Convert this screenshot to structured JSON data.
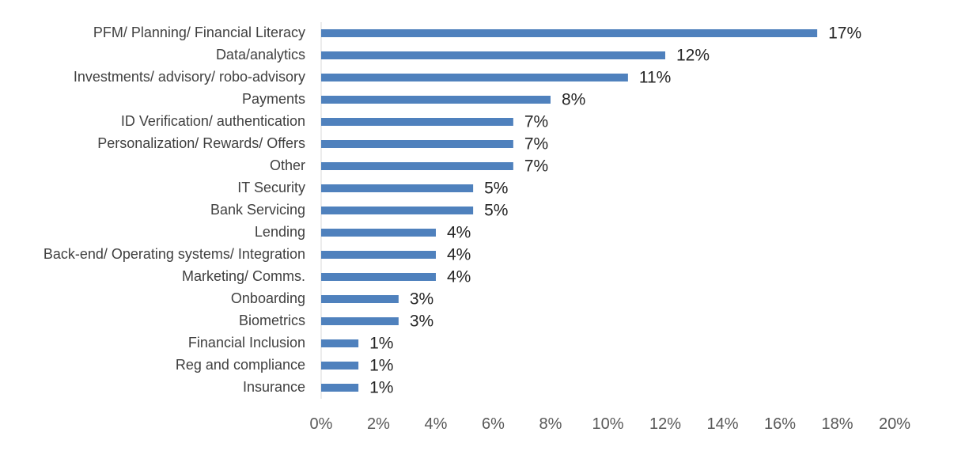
{
  "chart_data": {
    "type": "bar",
    "orientation": "horizontal",
    "title": "",
    "xlabel": "",
    "ylabel": "",
    "xlim": [
      0,
      20
    ],
    "x_ticks": [
      "0%",
      "2%",
      "4%",
      "6%",
      "8%",
      "10%",
      "12%",
      "14%",
      "16%",
      "18%",
      "20%"
    ],
    "grid": false,
    "bar_color": "#4f81bd",
    "categories": [
      "PFM/ Planning/ Financial Literacy",
      "Data/analytics",
      "Investments/ advisory/ robo-advisory",
      "Payments",
      "ID Verification/ authentication",
      "Personalization/ Rewards/ Offers",
      "Other",
      "IT Security",
      "Bank Servicing",
      "Lending",
      "Back-end/ Operating systems/ Integration",
      "Marketing/ Comms.",
      "Onboarding",
      "Biometrics",
      "Financial Inclusion",
      "Reg and compliance",
      "Insurance"
    ],
    "values": [
      17.3,
      12.0,
      10.7,
      8.0,
      6.7,
      6.7,
      6.7,
      5.3,
      5.3,
      4.0,
      4.0,
      4.0,
      2.7,
      2.7,
      1.3,
      1.3,
      1.3
    ],
    "data_labels": [
      "17%",
      "12%",
      "11%",
      "8%",
      "7%",
      "7%",
      "7%",
      "5%",
      "5%",
      "4%",
      "4%",
      "4%",
      "3%",
      "3%",
      "1%",
      "1%",
      "1%"
    ]
  }
}
